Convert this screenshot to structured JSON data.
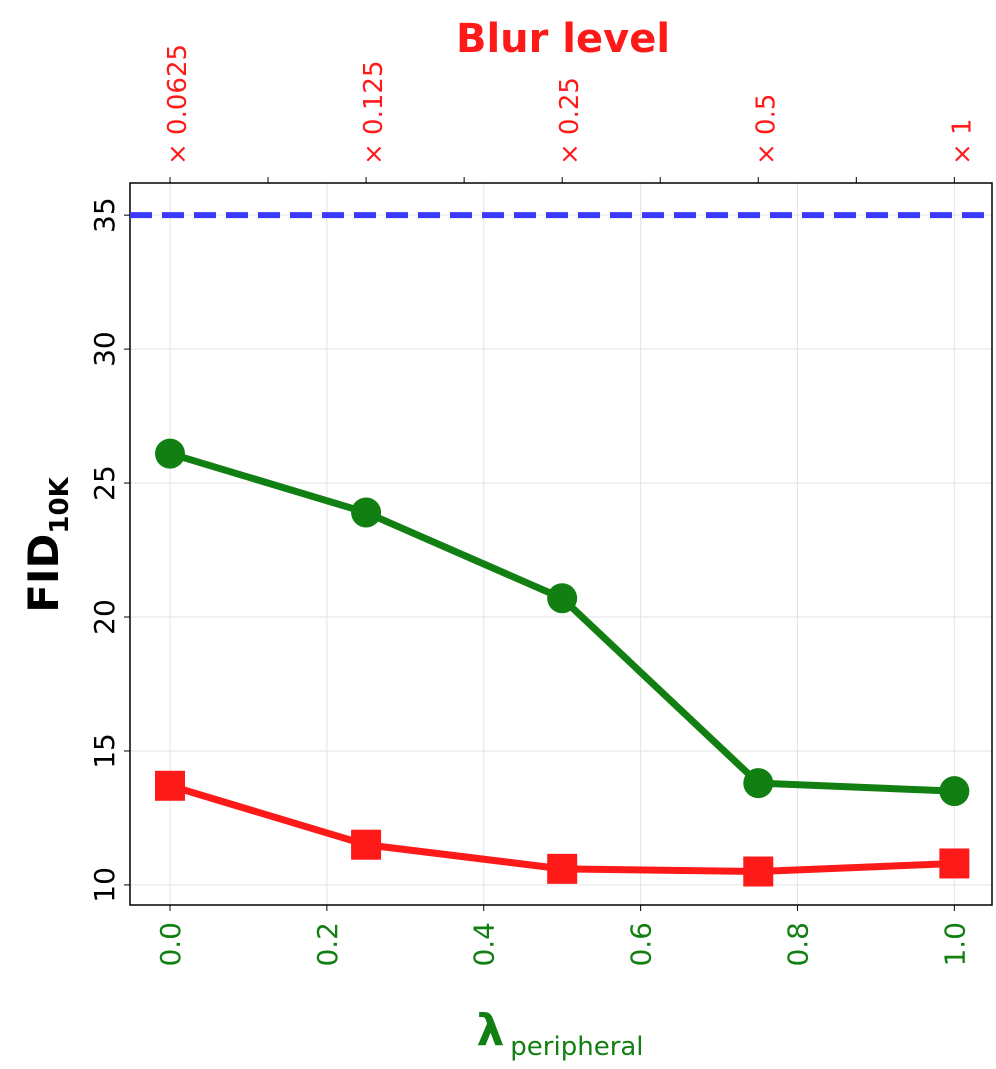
{
  "chart_data": {
    "type": "line",
    "title": "Blur level",
    "ylabel": {
      "text": "FID",
      "sub": "10K"
    },
    "xlabel": {
      "text": "λ",
      "sub": "peripheral"
    },
    "x": [
      0,
      0.25,
      0.5,
      0.75,
      1.0
    ],
    "series": [
      {
        "color": "#127f12",
        "marker": "circle",
        "values": [
          26.1,
          23.9,
          20.7,
          13.8,
          13.5
        ]
      },
      {
        "color": "#ff1a1a",
        "marker": "square",
        "values": [
          13.7,
          11.5,
          10.6,
          10.5,
          10.8
        ]
      }
    ],
    "hline": {
      "value": 35,
      "color": "#3a3aff",
      "dashed": true
    },
    "xlim": [
      -0.051,
      1.048
    ],
    "ylim": [
      9.25,
      36.2
    ],
    "xticks": [
      {
        "value": 0,
        "label": "0.0"
      },
      {
        "value": 0.2,
        "label": "0.2"
      },
      {
        "value": 0.4,
        "label": "0.4"
      },
      {
        "value": 0.6,
        "label": "0.6"
      },
      {
        "value": 0.8,
        "label": "0.8"
      },
      {
        "value": 1,
        "label": "1.0"
      }
    ],
    "yticks": [
      10,
      15,
      20,
      25,
      30,
      35
    ],
    "top_ticks": [
      {
        "value": 0,
        "label": "× 0.0625"
      },
      {
        "value": 0.25,
        "label": "× 0.125"
      },
      {
        "value": 0.5,
        "label": "× 0.25"
      },
      {
        "value": 0.75,
        "label": "× 0.5"
      },
      {
        "value": 1,
        "label": "× 1"
      }
    ],
    "top_minor_ticks": [
      0.125,
      0.375,
      0.625,
      0.875
    ],
    "grid": true
  }
}
